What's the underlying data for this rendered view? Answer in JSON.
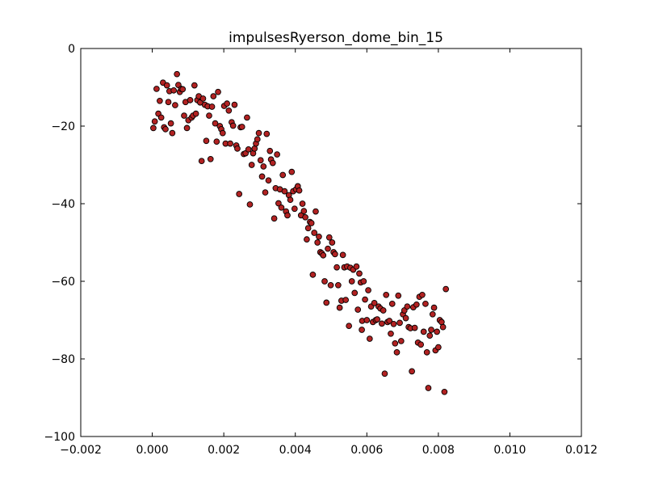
{
  "chart_data": {
    "type": "scatter",
    "title": "impulsesRyerson_dome_bin_15",
    "xlabel": "",
    "ylabel": "",
    "xlim": [
      -0.002,
      0.012
    ],
    "ylim": [
      -100,
      0
    ],
    "x_ticks": [
      "−0.002",
      "0.000",
      "0.002",
      "0.004",
      "0.006",
      "0.008",
      "0.010",
      "0.012"
    ],
    "y_ticks": [
      "0",
      "−20",
      "−40",
      "−60",
      "−80",
      "−100"
    ],
    "grid": false,
    "marker_color": "#b22222",
    "series": [
      {
        "points": [
          [
            3e-05,
            -20.5
          ],
          [
            7e-05,
            -18.8
          ],
          [
            0.00012,
            -10.4
          ],
          [
            0.00017,
            -16.8
          ],
          [
            0.00021,
            -13.5
          ],
          [
            0.00025,
            -17.8
          ],
          [
            0.0003,
            -8.8
          ],
          [
            0.00033,
            -20.3
          ],
          [
            0.00037,
            -20.8
          ],
          [
            0.00041,
            -9.5
          ],
          [
            0.00045,
            -13.8
          ],
          [
            0.00048,
            -11.0
          ],
          [
            0.00052,
            -19.3
          ],
          [
            0.00056,
            -21.8
          ],
          [
            0.0006,
            -10.8
          ],
          [
            0.00064,
            -14.6
          ],
          [
            0.00069,
            -6.6
          ],
          [
            0.00073,
            -9.4
          ],
          [
            0.00077,
            -11.2
          ],
          [
            0.00081,
            -10.4
          ],
          [
            0.00085,
            -10.5
          ],
          [
            0.00089,
            -17.3
          ],
          [
            0.00093,
            -13.8
          ],
          [
            0.00097,
            -20.5
          ],
          [
            0.00101,
            -18.5
          ],
          [
            0.00106,
            -13.3
          ],
          [
            0.0011,
            -17.8
          ],
          [
            0.00114,
            -17.3
          ],
          [
            0.00118,
            -9.5
          ],
          [
            0.00122,
            -16.8
          ],
          [
            0.00126,
            -13.3
          ],
          [
            0.0013,
            -12.3
          ],
          [
            0.00134,
            -13.9
          ],
          [
            0.00138,
            -29.0
          ],
          [
            0.00142,
            -12.9
          ],
          [
            0.00147,
            -14.5
          ],
          [
            0.00151,
            -23.8
          ],
          [
            0.00155,
            -14.9
          ],
          [
            0.00159,
            -17.3
          ],
          [
            0.00163,
            -28.5
          ],
          [
            0.00167,
            -15.0
          ],
          [
            0.00171,
            -12.3
          ],
          [
            0.00176,
            -19.3
          ],
          [
            0.0018,
            -24.0
          ],
          [
            0.00184,
            -11.2
          ],
          [
            0.00189,
            -20.0
          ],
          [
            0.00193,
            -20.8
          ],
          [
            0.00197,
            -21.8
          ],
          [
            0.00201,
            -14.8
          ],
          [
            0.00205,
            -24.5
          ],
          [
            0.00209,
            -14.2
          ],
          [
            0.00214,
            -16.0
          ],
          [
            0.00218,
            -24.5
          ],
          [
            0.00222,
            -19.0
          ],
          [
            0.00226,
            -19.9
          ],
          [
            0.0023,
            -14.5
          ],
          [
            0.00235,
            -25.0
          ],
          [
            0.00238,
            -25.8
          ],
          [
            0.00243,
            -37.5
          ],
          [
            0.00247,
            -20.3
          ],
          [
            0.00251,
            -20.2
          ],
          [
            0.00256,
            -27.2
          ],
          [
            0.00261,
            -27.0
          ],
          [
            0.00265,
            -17.8
          ],
          [
            0.00269,
            -26.0
          ],
          [
            0.00273,
            -40.2
          ],
          [
            0.00278,
            -30.0
          ],
          [
            0.00282,
            -27.0
          ],
          [
            0.00286,
            -25.8
          ],
          [
            0.0029,
            -24.5
          ],
          [
            0.00294,
            -23.4
          ],
          [
            0.00298,
            -21.8
          ],
          [
            0.00303,
            -28.8
          ],
          [
            0.00307,
            -33.0
          ],
          [
            0.00311,
            -30.4
          ],
          [
            0.00316,
            -37.1
          ],
          [
            0.0032,
            -22.0
          ],
          [
            0.00325,
            -34.0
          ],
          [
            0.00329,
            -26.4
          ],
          [
            0.00332,
            -28.6
          ],
          [
            0.00337,
            -29.5
          ],
          [
            0.00341,
            -43.8
          ],
          [
            0.00345,
            -36.0
          ],
          [
            0.00349,
            -27.3
          ],
          [
            0.00353,
            -39.9
          ],
          [
            0.00357,
            -36.3
          ],
          [
            0.00361,
            -41.0
          ],
          [
            0.00365,
            -32.6
          ],
          [
            0.0037,
            -36.8
          ],
          [
            0.00374,
            -42.0
          ],
          [
            0.00378,
            -43.0
          ],
          [
            0.00382,
            -37.8
          ],
          [
            0.00386,
            -39.0
          ],
          [
            0.0039,
            -31.8
          ],
          [
            0.00394,
            -36.8
          ],
          [
            0.00398,
            -41.3
          ],
          [
            0.00402,
            -36.3
          ],
          [
            0.00407,
            -35.5
          ],
          [
            0.00411,
            -36.6
          ],
          [
            0.00416,
            -43.0
          ],
          [
            0.0042,
            -40.0
          ],
          [
            0.00424,
            -41.9
          ],
          [
            0.00428,
            -43.5
          ],
          [
            0.00432,
            -49.2
          ],
          [
            0.00436,
            -46.3
          ],
          [
            0.00441,
            -44.7
          ],
          [
            0.00445,
            -45.0
          ],
          [
            0.00449,
            -58.3
          ],
          [
            0.00453,
            -47.5
          ],
          [
            0.00457,
            -42.0
          ],
          [
            0.00462,
            -50.0
          ],
          [
            0.00466,
            -48.5
          ],
          [
            0.0047,
            -52.5
          ],
          [
            0.00474,
            -52.8
          ],
          [
            0.00478,
            -53.3
          ],
          [
            0.00482,
            -60.0
          ],
          [
            0.00487,
            -65.5
          ],
          [
            0.00491,
            -51.6
          ],
          [
            0.00495,
            -48.7
          ],
          [
            0.00499,
            -61.0
          ],
          [
            0.00503,
            -50.0
          ],
          [
            0.00507,
            -52.5
          ],
          [
            0.00511,
            -53.0
          ],
          [
            0.00516,
            -56.4
          ],
          [
            0.0052,
            -61.0
          ],
          [
            0.00524,
            -66.8
          ],
          [
            0.00529,
            -65.0
          ],
          [
            0.00533,
            -53.2
          ],
          [
            0.00537,
            -56.4
          ],
          [
            0.00541,
            -64.8
          ],
          [
            0.00545,
            -56.2
          ],
          [
            0.0055,
            -71.5
          ],
          [
            0.00554,
            -56.5
          ],
          [
            0.00558,
            -60.0
          ],
          [
            0.00562,
            -57.0
          ],
          [
            0.00566,
            -63.0
          ],
          [
            0.00571,
            -56.2
          ],
          [
            0.00575,
            -67.3
          ],
          [
            0.00579,
            -58.0
          ],
          [
            0.00583,
            -60.3
          ],
          [
            0.00587,
            -70.2
          ],
          [
            0.00591,
            -60.0
          ],
          [
            0.00595,
            -64.7
          ],
          [
            0.006,
            -70.0
          ],
          [
            0.00604,
            -62.3
          ],
          [
            0.00608,
            -74.8
          ],
          [
            0.00612,
            -66.5
          ],
          [
            0.00617,
            -70.5
          ],
          [
            0.00621,
            -65.6
          ],
          [
            0.00625,
            -70.0
          ],
          [
            0.00629,
            -69.8
          ],
          [
            0.00633,
            -66.5
          ],
          [
            0.00638,
            -67.0
          ],
          [
            0.00642,
            -70.9
          ],
          [
            0.00646,
            -67.5
          ],
          [
            0.0065,
            -83.8
          ],
          [
            0.00654,
            -63.5
          ],
          [
            0.00658,
            -70.5
          ],
          [
            0.00663,
            -70.2
          ],
          [
            0.00667,
            -73.5
          ],
          [
            0.00671,
            -65.8
          ],
          [
            0.00675,
            -71.0
          ],
          [
            0.00679,
            -76.0
          ],
          [
            0.00684,
            -78.3
          ],
          [
            0.00688,
            -63.7
          ],
          [
            0.00692,
            -70.7
          ],
          [
            0.00696,
            -75.4
          ],
          [
            0.00701,
            -68.5
          ],
          [
            0.00705,
            -67.5
          ],
          [
            0.00709,
            -69.5
          ],
          [
            0.00713,
            -66.5
          ],
          [
            0.00717,
            -71.8
          ],
          [
            0.00722,
            -72.1
          ],
          [
            0.00726,
            -83.2
          ],
          [
            0.0073,
            -66.7
          ],
          [
            0.00734,
            -72.0
          ],
          [
            0.00739,
            -66.0
          ],
          [
            0.00743,
            -75.8
          ],
          [
            0.00747,
            -64.0
          ],
          [
            0.00751,
            -76.3
          ],
          [
            0.00755,
            -63.5
          ],
          [
            0.00759,
            -73.0
          ],
          [
            0.00764,
            -65.8
          ],
          [
            0.00768,
            -78.3
          ],
          [
            0.00772,
            -87.5
          ],
          [
            0.00776,
            -74.0
          ],
          [
            0.0078,
            -72.5
          ],
          [
            0.00784,
            -68.5
          ],
          [
            0.00788,
            -66.8
          ],
          [
            0.00792,
            -77.8
          ],
          [
            0.00796,
            -73.0
          ],
          [
            0.008,
            -77.0
          ],
          [
            0.00804,
            -70.0
          ],
          [
            0.00809,
            -70.5
          ],
          [
            0.00813,
            -71.8
          ],
          [
            0.00817,
            -88.5
          ],
          [
            0.00821,
            -62.0
          ],
          [
            0.00586,
            -72.5
          ]
        ]
      }
    ]
  }
}
